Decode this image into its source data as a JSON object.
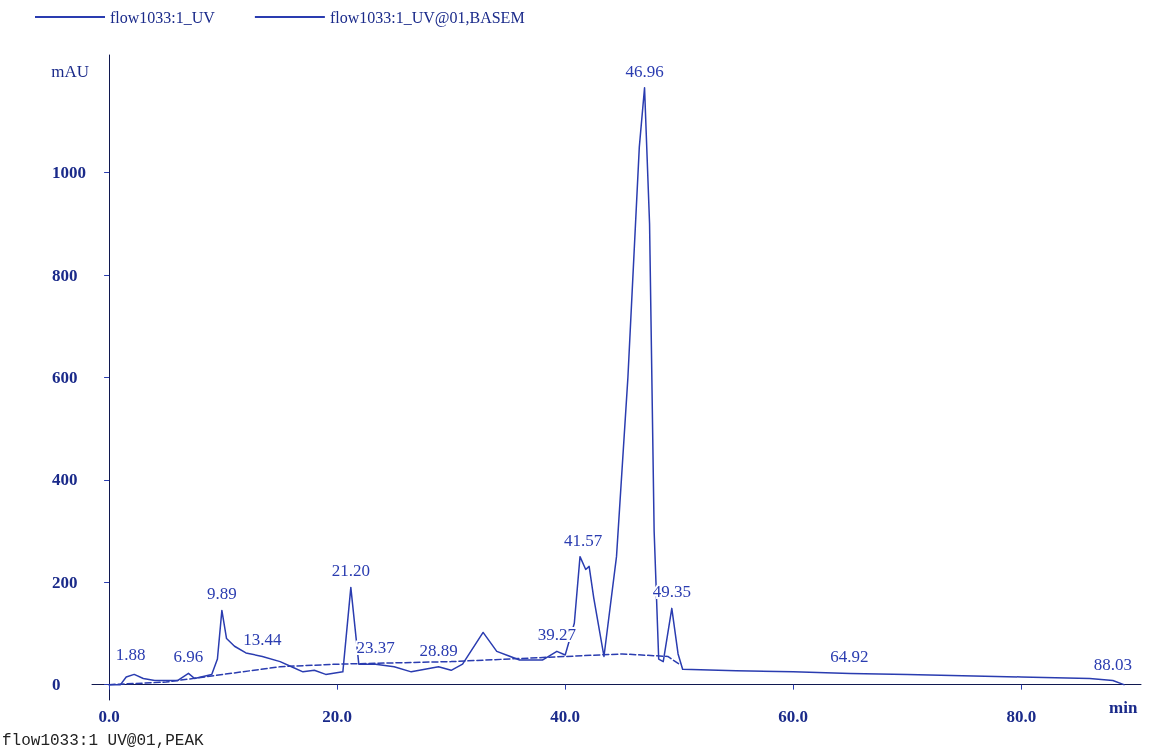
{
  "chart_data": {
    "type": "line",
    "xlabel": "min",
    "ylabel": "mAU",
    "legend": "top left",
    "grid": false,
    "marker": "none",
    "xlim": [
      -1.5,
      90.5
    ],
    "xticks": [
      {
        "value": 0,
        "label": "0.0"
      },
      {
        "value": 20,
        "label": "20.0"
      },
      {
        "value": 40,
        "label": "40.0"
      },
      {
        "value": 60,
        "label": "60.0"
      },
      {
        "value": 80,
        "label": "80.0"
      }
    ],
    "ylim": [
      -30,
      1230
    ],
    "yticks": [
      0,
      200,
      400,
      600,
      800,
      1000
    ],
    "series": [
      {
        "name": "flow1033:1_UV",
        "color": "#2a3cb0",
        "line_style": "solid",
        "x": [
          0,
          1,
          1.5,
          2.2,
          3,
          4,
          6,
          6.96,
          7.5,
          9,
          9.5,
          9.89,
          10.3,
          11,
          12,
          13.44,
          15,
          16,
          17,
          18,
          19,
          20.5,
          21.2,
          21.9,
          23.37,
          25,
          26.5,
          28.89,
          30,
          31,
          32.8,
          34,
          36,
          38,
          39.27,
          40,
          40.8,
          41.3,
          41.8,
          42.1,
          42.5,
          43.4,
          44.5,
          45.5,
          46.5,
          46.96,
          47.4,
          47.8,
          48.2,
          48.6,
          49.35,
          49.9,
          50.3,
          55,
          60,
          65,
          70,
          80,
          86,
          88.03,
          89
        ],
        "values": [
          0,
          0,
          15,
          20,
          12,
          8,
          8,
          22,
          12,
          20,
          50,
          145,
          90,
          75,
          62,
          55,
          45,
          35,
          25,
          28,
          20,
          25,
          190,
          40,
          40,
          35,
          25,
          35,
          28,
          40,
          102,
          65,
          48,
          48,
          65,
          58,
          120,
          250,
          225,
          231,
          170,
          55,
          250,
          600,
          1050,
          1166,
          900,
          300,
          50,
          45,
          149,
          60,
          30,
          27,
          25,
          22,
          20,
          15,
          12,
          8,
          0
        ]
      },
      {
        "name": "flow1033:1_UV@01,BASEM",
        "color": "#2a3cb0",
        "line_style": "dashed",
        "x": [
          0,
          5,
          10,
          15,
          20,
          30,
          40,
          45,
          49,
          50
        ],
        "values": [
          0,
          5,
          20,
          35,
          40,
          45,
          55,
          60,
          55,
          40
        ]
      }
    ],
    "annotations": [
      {
        "text": "1.88",
        "x": 1.88,
        "y": 27
      },
      {
        "text": "6.96",
        "x": 6.96,
        "y": 22
      },
      {
        "text": "9.89",
        "x": 9.89,
        "y": 145
      },
      {
        "text": "13.44",
        "x": 13.44,
        "y": 55
      },
      {
        "text": "21.20",
        "x": 21.2,
        "y": 190
      },
      {
        "text": "23.37",
        "x": 23.37,
        "y": 40
      },
      {
        "text": "28.89",
        "x": 28.89,
        "y": 35
      },
      {
        "text": "39.27",
        "x": 39.27,
        "y": 65
      },
      {
        "text": "41.57",
        "x": 41.57,
        "y": 250
      },
      {
        "text": "46.96",
        "x": 46.96,
        "y": 1166
      },
      {
        "text": "49.35",
        "x": 49.35,
        "y": 149
      },
      {
        "text": "64.92",
        "x": 64.92,
        "y": 22
      },
      {
        "text": "88.03",
        "x": 88.03,
        "y": 8
      },
      "flow1033:1 UV@01,PEAK"
    ]
  }
}
